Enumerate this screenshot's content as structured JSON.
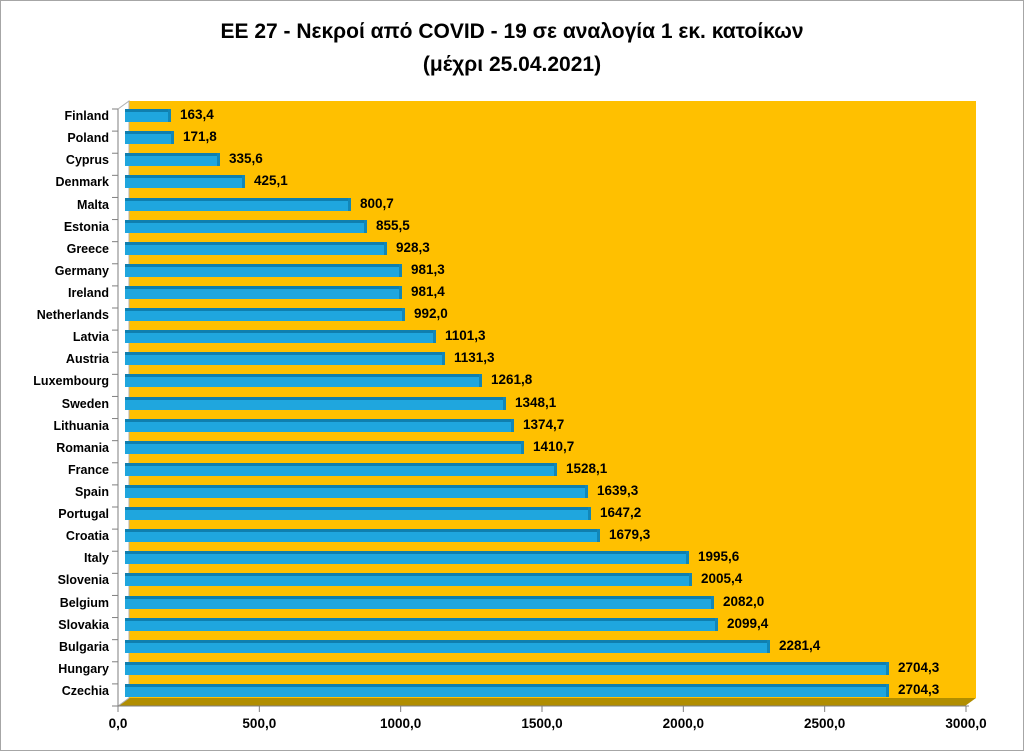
{
  "title": {
    "line1": "ΕΕ 27 - Νεκροί από COVID - 19 σε αναλογία 1 εκ. κατοίκων",
    "line2": "(μέχρι 25.04.2021)"
  },
  "chart_data": {
    "type": "bar",
    "orientation": "horizontal",
    "title": "ΕΕ 27 - Νεκροί από COVID - 19 σε αναλογία 1 εκ. κατοίκων (μέχρι 25.04.2021)",
    "categories": [
      "Finland",
      "Poland",
      "Cyprus",
      "Denmark",
      "Malta",
      "Estonia",
      "Greece",
      "Germany",
      "Ireland",
      "Netherlands",
      "Latvia",
      "Austria",
      "Luxembourg",
      "Sweden",
      "Lithuania",
      "Romania",
      "France",
      "Spain",
      "Portugal",
      "Croatia",
      "Italy",
      "Slovenia",
      "Belgium",
      "Slovakia",
      "Bulgaria",
      "Hungary",
      "Czechia"
    ],
    "values": [
      163.4,
      171.8,
      335.6,
      425.1,
      800.7,
      855.5,
      928.3,
      981.3,
      981.4,
      992.0,
      1101.3,
      1131.3,
      1261.8,
      1348.1,
      1374.7,
      1410.7,
      1528.1,
      1639.3,
      1647.2,
      1679.3,
      1995.6,
      2005.4,
      2082.0,
      2099.4,
      2281.4,
      2704.3,
      2704.3
    ],
    "value_labels": [
      "163,4",
      "171,8",
      "335,6",
      "425,1",
      "800,7",
      "855,5",
      "928,3",
      "981,3",
      "981,4",
      "992,0",
      "1101,3",
      "1131,3",
      "1261,8",
      "1348,1",
      "1374,7",
      "1410,7",
      "1528,1",
      "1639,3",
      "1647,2",
      "1679,3",
      "1995,6",
      "2005,4",
      "2082,0",
      "2099,4",
      "2281,4",
      "2704,3",
      "2704,3"
    ],
    "xlim": [
      0,
      3000
    ],
    "x_tick_values": [
      0,
      500,
      1000,
      1500,
      2000,
      2500,
      3000
    ],
    "x_tick_labels": [
      "0,0",
      "500,0",
      "1000,0",
      "1500,0",
      "2000,0",
      "2500,0",
      "3000,0"
    ],
    "grid": false,
    "legend": false,
    "style": "3d",
    "colors": {
      "plot_bg": "#FFC000",
      "floor": "#B18E00",
      "wall": "#FFFFFF",
      "bar": "#1FA6DE",
      "bar_top": "#0F7FAF",
      "bar_cap": "#1187B9",
      "axis": "#7F7F7F",
      "text": "#000000",
      "frame_border": "#A6A6A6"
    }
  }
}
